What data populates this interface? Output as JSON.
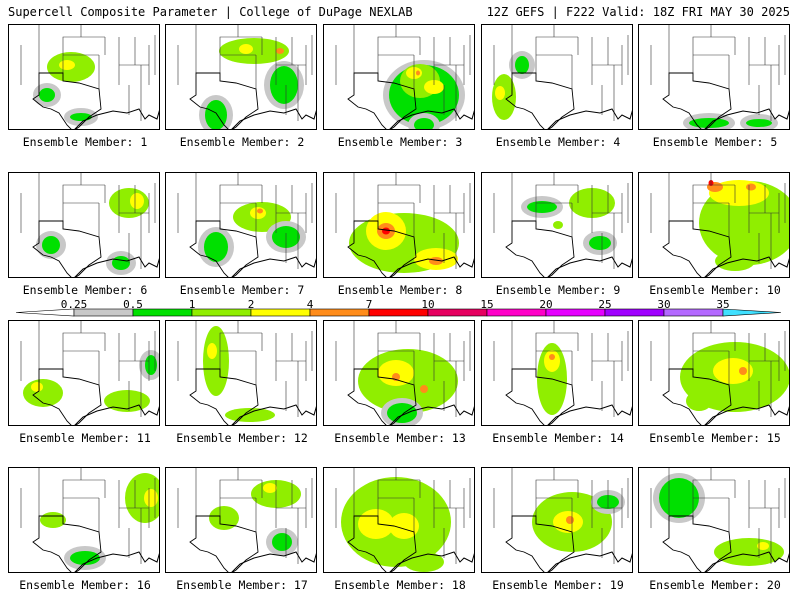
{
  "header": {
    "title": "Supercell Composite Parameter | College of DuPage NEXLAB",
    "run_info": "12Z GEFS | F222 Valid: 18Z FRI MAY 30 2025"
  },
  "legend": {
    "levels": [
      "0.25",
      "0.5",
      "1",
      "2",
      "4",
      "7",
      "10",
      "15",
      "20",
      "25",
      "30",
      "35"
    ],
    "colors": [
      "#c8c8c8",
      "#00e000",
      "#90ee00",
      "#ffff00",
      "#ff8c1a",
      "#ff0000",
      "#e60060",
      "#ff00c8",
      "#e600ff",
      "#a000ff",
      "#b469ff",
      "#40e0ff"
    ]
  },
  "members": [
    {
      "label": "Ensemble Member: 1",
      "blobs": [
        {
          "x": 62,
          "y": 42,
          "w": 48,
          "h": 30,
          "level": 2
        },
        {
          "x": 58,
          "y": 40,
          "w": 16,
          "h": 10,
          "level": 3
        },
        {
          "x": 38,
          "y": 70,
          "w": 16,
          "h": 14,
          "level": 1
        },
        {
          "x": 72,
          "y": 92,
          "w": 22,
          "h": 8,
          "level": 1
        }
      ]
    },
    {
      "label": "Ensemble Member: 2",
      "blobs": [
        {
          "x": 88,
          "y": 26,
          "w": 70,
          "h": 26,
          "level": 2
        },
        {
          "x": 80,
          "y": 24,
          "w": 14,
          "h": 10,
          "level": 3
        },
        {
          "x": 114,
          "y": 26,
          "w": 8,
          "h": 6,
          "level": 4
        },
        {
          "x": 50,
          "y": 90,
          "w": 22,
          "h": 30,
          "level": 1
        },
        {
          "x": 118,
          "y": 60,
          "w": 28,
          "h": 38,
          "level": 1
        }
      ]
    },
    {
      "label": "Ensemble Member: 3",
      "blobs": [
        {
          "x": 100,
          "y": 70,
          "w": 70,
          "h": 60,
          "level": 1
        },
        {
          "x": 96,
          "y": 56,
          "w": 40,
          "h": 34,
          "level": 2
        },
        {
          "x": 90,
          "y": 48,
          "w": 16,
          "h": 12,
          "level": 3
        },
        {
          "x": 94,
          "y": 48,
          "w": 4,
          "h": 5,
          "level": 4
        },
        {
          "x": 110,
          "y": 62,
          "w": 20,
          "h": 14,
          "level": 3
        },
        {
          "x": 100,
          "y": 100,
          "w": 20,
          "h": 14,
          "level": 1
        }
      ]
    },
    {
      "label": "Ensemble Member: 4",
      "blobs": [
        {
          "x": 22,
          "y": 72,
          "w": 24,
          "h": 46,
          "level": 2
        },
        {
          "x": 18,
          "y": 68,
          "w": 10,
          "h": 14,
          "level": 3
        },
        {
          "x": 40,
          "y": 40,
          "w": 14,
          "h": 18,
          "level": 1
        }
      ]
    },
    {
      "label": "Ensemble Member: 5",
      "blobs": [
        {
          "x": 70,
          "y": 98,
          "w": 40,
          "h": 10,
          "level": 1
        },
        {
          "x": 120,
          "y": 98,
          "w": 26,
          "h": 8,
          "level": 1
        }
      ]
    },
    {
      "label": "Ensemble Member: 6",
      "blobs": [
        {
          "x": 120,
          "y": 30,
          "w": 40,
          "h": 30,
          "level": 2
        },
        {
          "x": 128,
          "y": 28,
          "w": 14,
          "h": 16,
          "level": 3
        },
        {
          "x": 42,
          "y": 72,
          "w": 18,
          "h": 18,
          "level": 1
        },
        {
          "x": 112,
          "y": 90,
          "w": 18,
          "h": 14,
          "level": 1
        }
      ]
    },
    {
      "label": "Ensemble Member: 7",
      "blobs": [
        {
          "x": 96,
          "y": 44,
          "w": 58,
          "h": 30,
          "level": 2
        },
        {
          "x": 92,
          "y": 40,
          "w": 16,
          "h": 12,
          "level": 3
        },
        {
          "x": 94,
          "y": 38,
          "w": 6,
          "h": 5,
          "level": 4
        },
        {
          "x": 50,
          "y": 74,
          "w": 24,
          "h": 30,
          "level": 1
        },
        {
          "x": 120,
          "y": 64,
          "w": 28,
          "h": 22,
          "level": 1
        }
      ]
    },
    {
      "label": "Ensemble Member: 8",
      "blobs": [
        {
          "x": 80,
          "y": 70,
          "w": 110,
          "h": 60,
          "level": 2
        },
        {
          "x": 62,
          "y": 58,
          "w": 40,
          "h": 38,
          "level": 3
        },
        {
          "x": 62,
          "y": 58,
          "w": 18,
          "h": 16,
          "level": 4
        },
        {
          "x": 62,
          "y": 58,
          "w": 8,
          "h": 7,
          "level": 5
        },
        {
          "x": 112,
          "y": 86,
          "w": 44,
          "h": 22,
          "level": 3
        },
        {
          "x": 112,
          "y": 88,
          "w": 14,
          "h": 8,
          "level": 4
        }
      ]
    },
    {
      "label": "Ensemble Member: 9",
      "blobs": [
        {
          "x": 110,
          "y": 30,
          "w": 46,
          "h": 30,
          "level": 2
        },
        {
          "x": 60,
          "y": 34,
          "w": 30,
          "h": 12,
          "level": 1
        },
        {
          "x": 76,
          "y": 52,
          "w": 10,
          "h": 8,
          "level": 2
        },
        {
          "x": 118,
          "y": 70,
          "w": 22,
          "h": 14,
          "level": 1
        }
      ]
    },
    {
      "label": "Ensemble Member: 10",
      "blobs": [
        {
          "x": 110,
          "y": 50,
          "w": 100,
          "h": 84,
          "level": 2
        },
        {
          "x": 100,
          "y": 20,
          "w": 60,
          "h": 26,
          "level": 3
        },
        {
          "x": 76,
          "y": 14,
          "w": 16,
          "h": 10,
          "level": 4
        },
        {
          "x": 72,
          "y": 10,
          "w": 5,
          "h": 6,
          "level": 5
        },
        {
          "x": 112,
          "y": 14,
          "w": 10,
          "h": 7,
          "level": 4
        },
        {
          "x": 96,
          "y": 88,
          "w": 40,
          "h": 20,
          "level": 2
        }
      ]
    },
    {
      "label": "Ensemble Member: 11",
      "blobs": [
        {
          "x": 34,
          "y": 72,
          "w": 40,
          "h": 28,
          "level": 2
        },
        {
          "x": 28,
          "y": 66,
          "w": 12,
          "h": 10,
          "level": 3
        },
        {
          "x": 118,
          "y": 80,
          "w": 46,
          "h": 22,
          "level": 2
        },
        {
          "x": 142,
          "y": 44,
          "w": 12,
          "h": 20,
          "level": 1
        }
      ]
    },
    {
      "label": "Ensemble Member: 12",
      "blobs": [
        {
          "x": 50,
          "y": 40,
          "w": 26,
          "h": 70,
          "level": 2
        },
        {
          "x": 46,
          "y": 30,
          "w": 10,
          "h": 16,
          "level": 3
        },
        {
          "x": 84,
          "y": 94,
          "w": 50,
          "h": 14,
          "level": 2
        }
      ]
    },
    {
      "label": "Ensemble Member: 13",
      "blobs": [
        {
          "x": 84,
          "y": 60,
          "w": 100,
          "h": 64,
          "level": 2
        },
        {
          "x": 72,
          "y": 52,
          "w": 36,
          "h": 26,
          "level": 3
        },
        {
          "x": 72,
          "y": 56,
          "w": 8,
          "h": 8,
          "level": 4
        },
        {
          "x": 100,
          "y": 68,
          "w": 8,
          "h": 8,
          "level": 4
        },
        {
          "x": 78,
          "y": 92,
          "w": 30,
          "h": 20,
          "level": 1
        }
      ]
    },
    {
      "label": "Ensemble Member: 14",
      "blobs": [
        {
          "x": 70,
          "y": 58,
          "w": 30,
          "h": 72,
          "level": 2
        },
        {
          "x": 70,
          "y": 40,
          "w": 16,
          "h": 22,
          "level": 3
        },
        {
          "x": 70,
          "y": 36,
          "w": 6,
          "h": 6,
          "level": 4
        }
      ]
    },
    {
      "label": "Ensemble Member: 15",
      "blobs": [
        {
          "x": 96,
          "y": 56,
          "w": 110,
          "h": 70,
          "level": 2
        },
        {
          "x": 94,
          "y": 50,
          "w": 40,
          "h": 26,
          "level": 3
        },
        {
          "x": 104,
          "y": 50,
          "w": 8,
          "h": 8,
          "level": 4
        },
        {
          "x": 60,
          "y": 80,
          "w": 26,
          "h": 20,
          "level": 2
        }
      ]
    },
    {
      "label": "Ensemble Member: 16",
      "blobs": [
        {
          "x": 136,
          "y": 30,
          "w": 40,
          "h": 50,
          "level": 2
        },
        {
          "x": 142,
          "y": 30,
          "w": 14,
          "h": 18,
          "level": 3
        },
        {
          "x": 44,
          "y": 52,
          "w": 26,
          "h": 16,
          "level": 2
        },
        {
          "x": 76,
          "y": 90,
          "w": 30,
          "h": 14,
          "level": 1
        }
      ]
    },
    {
      "label": "Ensemble Member: 17",
      "blobs": [
        {
          "x": 110,
          "y": 26,
          "w": 50,
          "h": 28,
          "level": 2
        },
        {
          "x": 104,
          "y": 20,
          "w": 14,
          "h": 10,
          "level": 3
        },
        {
          "x": 58,
          "y": 50,
          "w": 30,
          "h": 24,
          "level": 2
        },
        {
          "x": 116,
          "y": 74,
          "w": 20,
          "h": 18,
          "level": 1
        }
      ]
    },
    {
      "label": "Ensemble Member: 18",
      "blobs": [
        {
          "x": 72,
          "y": 54,
          "w": 110,
          "h": 90,
          "level": 2
        },
        {
          "x": 52,
          "y": 56,
          "w": 36,
          "h": 30,
          "level": 3
        },
        {
          "x": 80,
          "y": 58,
          "w": 30,
          "h": 26,
          "level": 3
        },
        {
          "x": 100,
          "y": 94,
          "w": 40,
          "h": 20,
          "level": 2
        }
      ]
    },
    {
      "label": "Ensemble Member: 19",
      "blobs": [
        {
          "x": 90,
          "y": 54,
          "w": 80,
          "h": 60,
          "level": 2
        },
        {
          "x": 86,
          "y": 54,
          "w": 30,
          "h": 22,
          "level": 3
        },
        {
          "x": 88,
          "y": 52,
          "w": 8,
          "h": 8,
          "level": 4
        },
        {
          "x": 126,
          "y": 34,
          "w": 22,
          "h": 14,
          "level": 1
        }
      ]
    },
    {
      "label": "Ensemble Member: 20",
      "blobs": [
        {
          "x": 40,
          "y": 30,
          "w": 40,
          "h": 40,
          "level": 1
        },
        {
          "x": 110,
          "y": 84,
          "w": 70,
          "h": 28,
          "level": 2
        },
        {
          "x": 124,
          "y": 78,
          "w": 12,
          "h": 8,
          "level": 3
        }
      ]
    }
  ]
}
